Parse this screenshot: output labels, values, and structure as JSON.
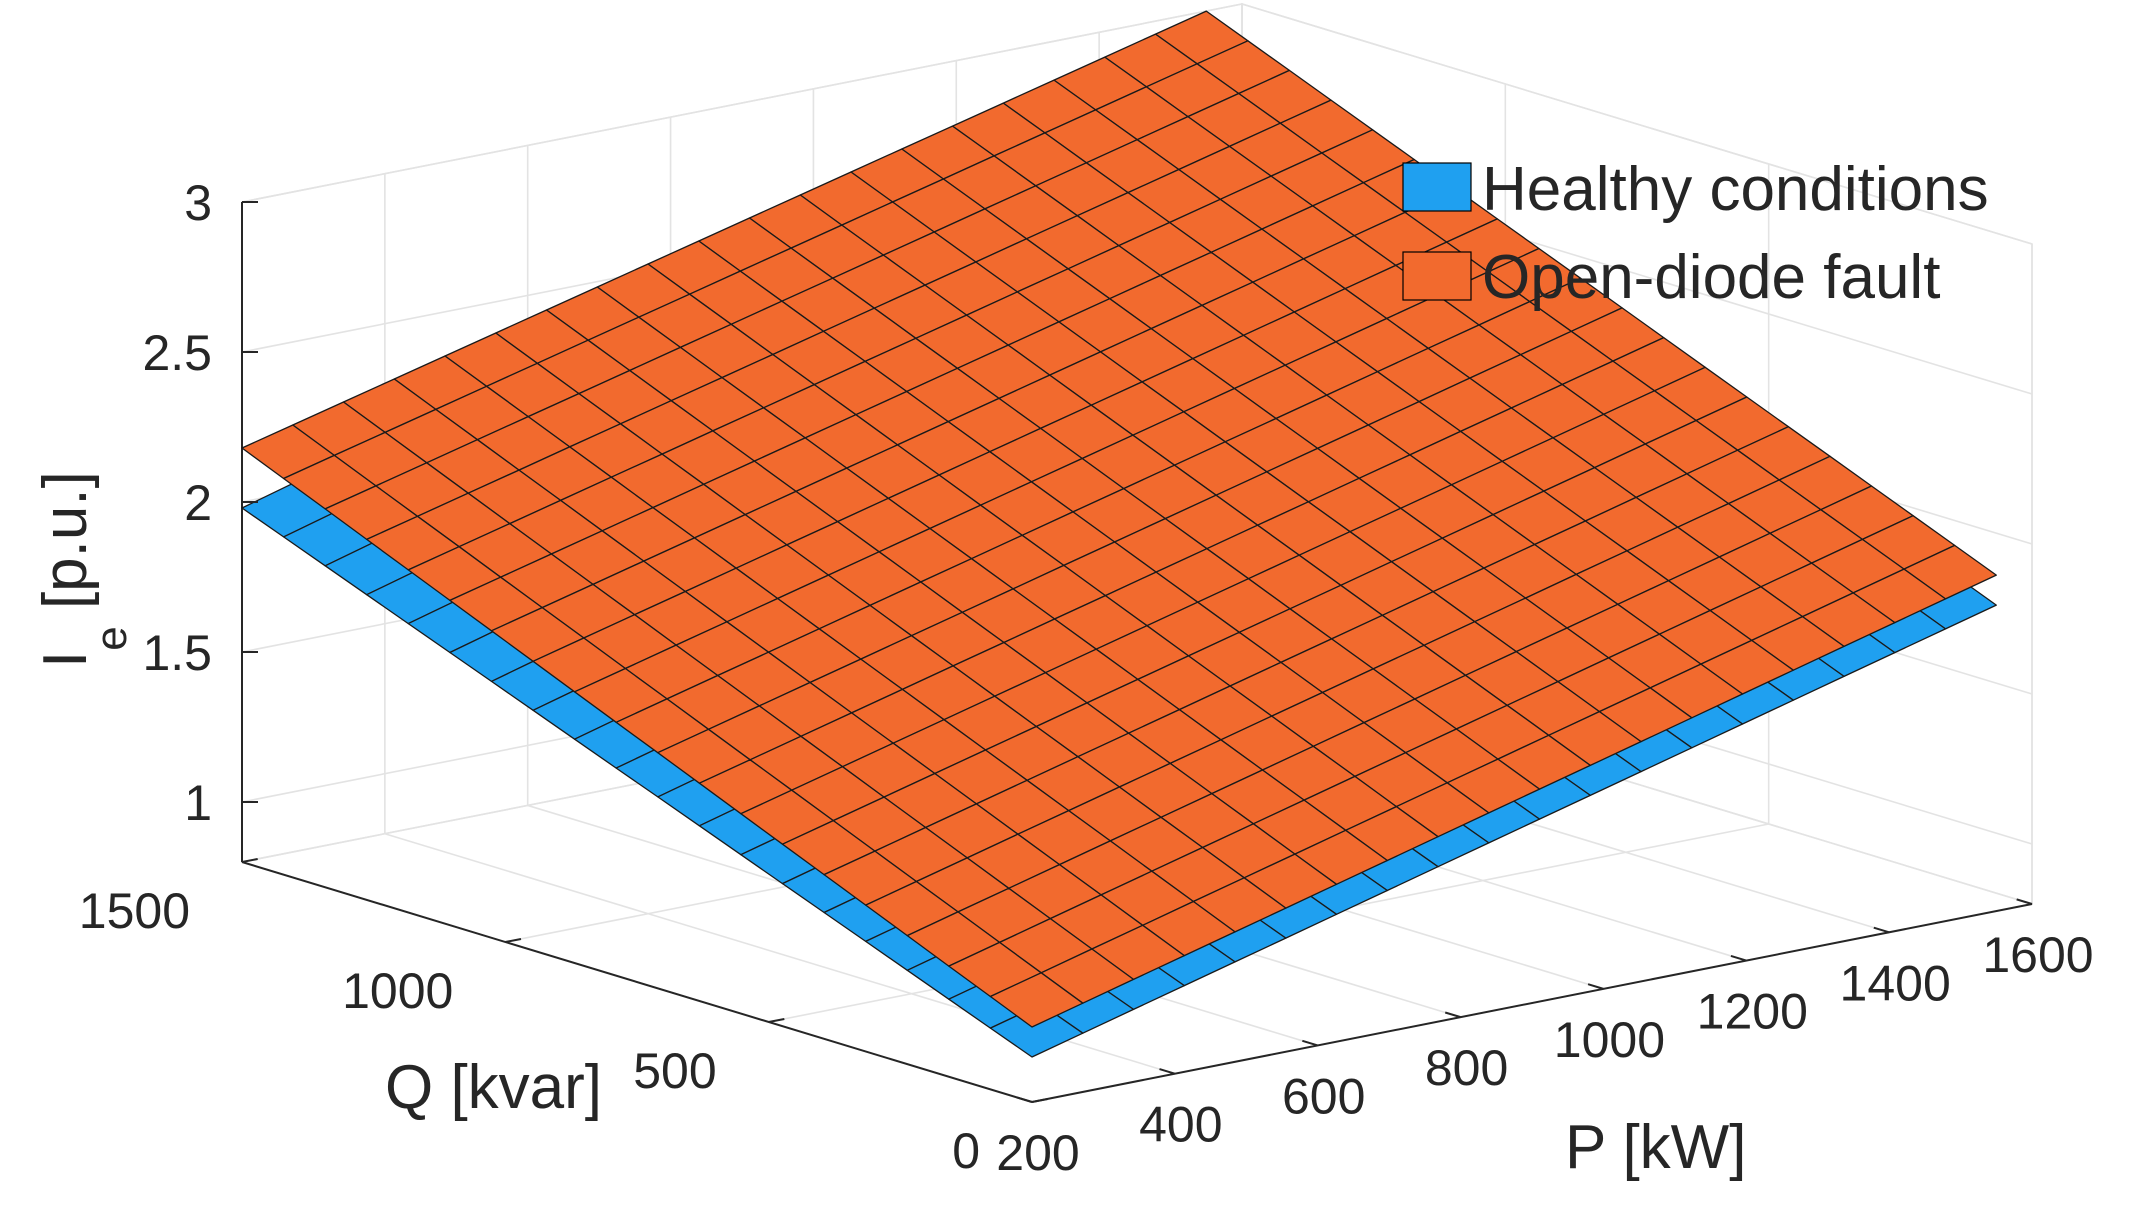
{
  "chart_data": {
    "type": "surface3d",
    "title": "",
    "xlabel": "P [kW]",
    "ylabel": "Q [kvar]",
    "zlabel": "I",
    "zlabel_subscript": "e",
    "zlabel_unit": " [p.u.]",
    "xlim": [
      200,
      1600
    ],
    "ylim": [
      0,
      1500
    ],
    "zlim": [
      0.8,
      3
    ],
    "x_ticks": [
      "200",
      "400",
      "600",
      "800",
      "1000",
      "1200",
      "1400",
      "1600"
    ],
    "y_ticks": [
      "0",
      "500",
      "1000",
      "1500"
    ],
    "z_ticks": [
      "1",
      "1.5",
      "2",
      "2.5",
      "3"
    ],
    "grid": true,
    "legend_position": "top-right",
    "x_values": [
      200,
      1550
    ],
    "y_values": [
      0,
      1500
    ],
    "series": [
      {
        "name": "Healthy conditions",
        "color": "#1fa0f0",
        "corners": {
          "p200_q0": 0.95,
          "p1550_q0": 1.82,
          "p200_q1500": 1.98,
          "p1550_q1500": 2.9
        },
        "mesh": [
          19,
          19
        ]
      },
      {
        "name": "Open-diode fault",
        "color": "#f26a2e",
        "corners": {
          "p200_q0": 1.05,
          "p1550_q0": 1.92,
          "p200_q1500": 2.18,
          "p1550_q1500": 3.0
        },
        "mesh": [
          19,
          19
        ]
      }
    ]
  }
}
